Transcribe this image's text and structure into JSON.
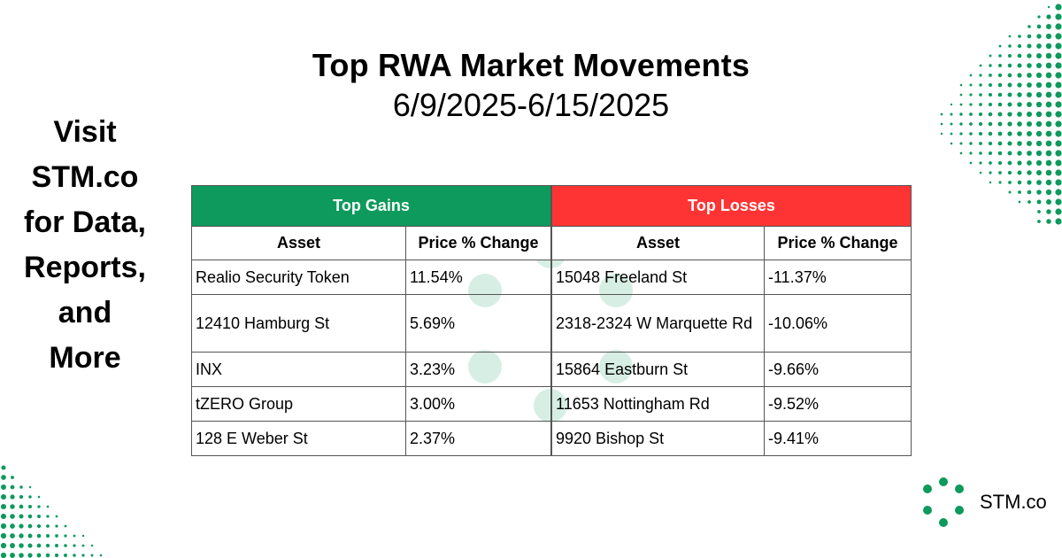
{
  "title": {
    "main": "Top RWA Market Movements",
    "date_range": "6/9/2025-6/15/2025"
  },
  "promo": {
    "lines": [
      "Visit",
      "STM.co",
      "for Data,",
      "Reports,",
      "and",
      "More"
    ]
  },
  "gains": {
    "header": "Top Gains",
    "col_asset": "Asset",
    "col_change": "Price % Change",
    "rows": [
      {
        "asset": "Realio Security Token",
        "change": "11.54%"
      },
      {
        "asset": "12410 Hamburg St",
        "change": "5.69%"
      },
      {
        "asset": "INX",
        "change": "3.23%"
      },
      {
        "asset": "tZERO Group",
        "change": "3.00%"
      },
      {
        "asset": "128 E Weber St",
        "change": "2.37%"
      }
    ]
  },
  "losses": {
    "header": "Top Losses",
    "col_asset": "Asset",
    "col_change": "Price % Change",
    "rows": [
      {
        "asset": "15048 Freeland St",
        "change": "-11.37%"
      },
      {
        "asset": "2318-2324 W Marquette Rd",
        "change": "-10.06%"
      },
      {
        "asset": "15864 Eastburn St",
        "change": "-9.66%"
      },
      {
        "asset": "11653 Nottingham Rd",
        "change": "-9.52%"
      },
      {
        "asset": "9920 Bishop St",
        "change": "-9.41%"
      }
    ]
  },
  "logo": {
    "text": "STM.co",
    "icon": "stm-dots-logo-icon"
  },
  "colors": {
    "gains_band": "#0d9a5c",
    "losses_band": "#fe3434",
    "dot_green": "#0d9a5c"
  }
}
